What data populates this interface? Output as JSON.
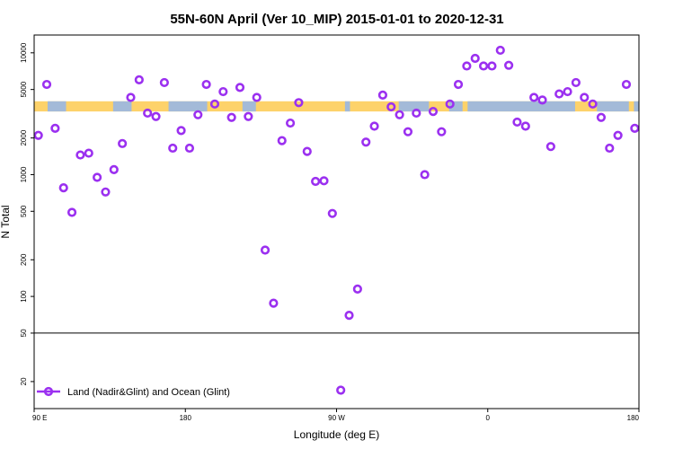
{
  "chart_data": {
    "type": "scatter",
    "title": "55N-60N April (Ver 10_MIP)   2015-01-01 to 2020-12-31",
    "xlabel": "Longitude (deg E)",
    "ylabel": "N Total",
    "x_axis": {
      "min": 90,
      "max": 450,
      "tick_values": [
        90,
        180,
        270,
        360,
        450
      ],
      "tick_labels": [
        "90 E",
        "180",
        "90 W",
        "0",
        "180"
      ]
    },
    "y_axis": {
      "scale": "log",
      "min": 12,
      "max": 14000,
      "tick_values": [
        20,
        50,
        100,
        200,
        500,
        1000,
        2000,
        5000,
        10000
      ],
      "tick_labels": [
        "20",
        "50",
        "100",
        "200",
        "500",
        "1000",
        "2000",
        "5000",
        "10000"
      ],
      "reference_line": 50
    },
    "land_ocean_band": {
      "y_low": 3300,
      "y_high": 4000,
      "land_color": "#a3bad8",
      "ocean_color": "#fdd26a",
      "land_ranges_lon": [
        [
          98,
          109
        ],
        [
          137,
          148
        ],
        [
          170,
          193
        ],
        [
          214,
          222
        ],
        [
          275,
          278
        ],
        [
          307,
          325
        ],
        [
          337,
          345
        ],
        [
          348,
          412
        ],
        [
          425,
          444
        ],
        [
          447,
          450
        ]
      ]
    },
    "series": [
      {
        "name": "Land (Nadir&Glint) and Ocean (Glint)",
        "color": "#9b30f0",
        "x": [
          92.5,
          97.5,
          102.5,
          107.5,
          112.5,
          117.5,
          122.5,
          127.5,
          132.5,
          137.5,
          142.5,
          147.5,
          152.5,
          157.5,
          162.5,
          167.5,
          172.5,
          177.5,
          182.5,
          187.5,
          192.5,
          197.5,
          202.5,
          207.5,
          212.5,
          217.5,
          222.5,
          227.5,
          232.5,
          237.5,
          242.5,
          247.5,
          252.5,
          257.5,
          262.5,
          267.5,
          272.5,
          277.5,
          282.5,
          287.5,
          292.5,
          297.5,
          302.5,
          307.5,
          312.5,
          317.5,
          322.5,
          327.5,
          332.5,
          337.5,
          342.5,
          347.5,
          352.5,
          357.5,
          362.5,
          367.5,
          372.5,
          377.5,
          382.5,
          387.5,
          392.5,
          397.5,
          402.5,
          407.5,
          412.5,
          417.5,
          422.5,
          427.5,
          432.5,
          437.5,
          442.5,
          447.5
        ],
        "y": [
          2100,
          5500,
          2400,
          780,
          490,
          1450,
          1500,
          950,
          720,
          1100,
          1800,
          4300,
          6000,
          3200,
          3000,
          5700,
          1650,
          2300,
          1650,
          3100,
          5500,
          3800,
          4800,
          2950,
          5200,
          3000,
          4300,
          240,
          88,
          1900,
          2650,
          3900,
          1550,
          880,
          890,
          480,
          17,
          70,
          115,
          1850,
          2500,
          4500,
          3600,
          3100,
          2250,
          3200,
          1000,
          3300,
          2250,
          3800,
          5500,
          7800,
          9000,
          7800,
          7800,
          10500,
          7900,
          2700,
          2500,
          4300,
          4100,
          1700,
          4600,
          4800,
          5700,
          4300,
          3800,
          2950,
          1650,
          2100,
          5500,
          2400
        ]
      }
    ],
    "legend": {
      "position": "bottom-left",
      "label": "Land (Nadir&Glint) and Ocean (Glint)"
    }
  }
}
